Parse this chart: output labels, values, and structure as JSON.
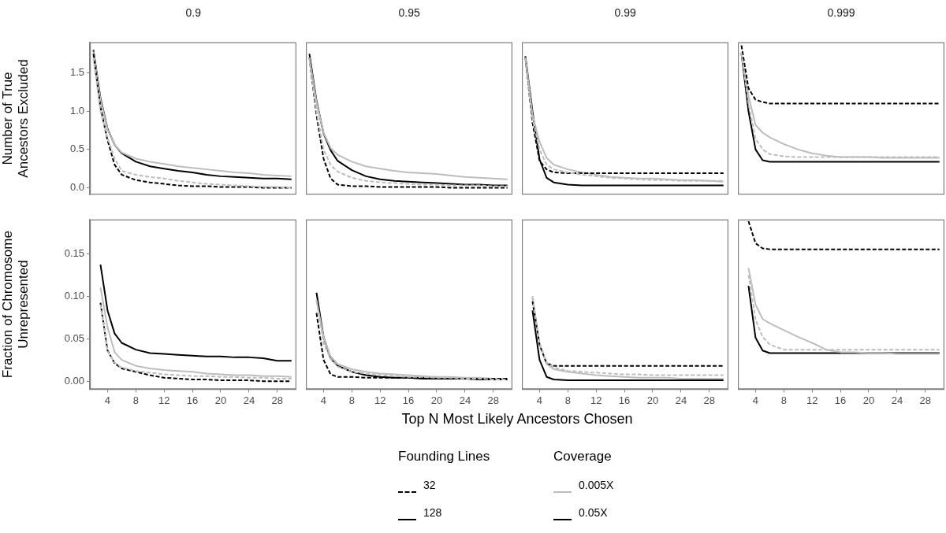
{
  "chart_data": [
    {
      "type": "line",
      "title": "0.9",
      "ylabel": "Number of True Ancestors Excluded",
      "x": [
        2,
        3,
        4,
        5,
        6,
        8,
        10,
        12,
        14,
        16,
        18,
        20,
        22,
        24,
        26,
        28,
        30
      ],
      "xlim": [
        1.5,
        30.7
      ],
      "ylim": [
        -0.09,
        1.9
      ],
      "yticks": [
        {
          "value": 0,
          "label": "0.0"
        },
        0.5,
        {
          "value": 1,
          "label": "1.0"
        },
        1.5
      ],
      "tick_labels": "y",
      "series": [
        {
          "color": "#bdbdbd",
          "line_style": "dashed",
          "values": [
            1.7,
            1.0,
            0.65,
            0.38,
            0.22,
            0.17,
            0.14,
            0.12,
            0.09,
            0.07,
            0.05,
            0.04,
            0.03,
            0.02,
            0.01,
            0.01,
            0.0
          ]
        },
        {
          "color": "#000000",
          "line_style": "dashed",
          "values": [
            1.75,
            1.05,
            0.62,
            0.3,
            0.17,
            0.1,
            0.07,
            0.05,
            0.03,
            0.02,
            0.02,
            0.01,
            0.01,
            0.01,
            0.0,
            0.0,
            0.0
          ]
        },
        {
          "color": "#bdbdbd",
          "line_style": "solid",
          "values": [
            1.78,
            1.15,
            0.76,
            0.56,
            0.46,
            0.38,
            0.34,
            0.31,
            0.28,
            0.26,
            0.24,
            0.22,
            0.2,
            0.19,
            0.17,
            0.16,
            0.15
          ]
        },
        {
          "color": "#000000",
          "line_style": "solid",
          "values": [
            1.8,
            1.17,
            0.77,
            0.56,
            0.45,
            0.34,
            0.28,
            0.25,
            0.22,
            0.2,
            0.17,
            0.15,
            0.14,
            0.13,
            0.12,
            0.12,
            0.11
          ]
        }
      ]
    },
    {
      "type": "line",
      "title": "0.95",
      "x": [
        2,
        3,
        4,
        5,
        6,
        8,
        10,
        12,
        14,
        16,
        18,
        20,
        22,
        24,
        26,
        28,
        30
      ],
      "xlim": [
        1.5,
        30.7
      ],
      "ylim": [
        -0.09,
        1.9
      ],
      "tick_labels": false,
      "series": [
        {
          "color": "#bdbdbd",
          "line_style": "dashed",
          "values": [
            1.7,
            1.0,
            0.5,
            0.3,
            0.21,
            0.13,
            0.09,
            0.07,
            0.06,
            0.05,
            0.04,
            0.04,
            0.03,
            0.03,
            0.03,
            0.02,
            0.02
          ]
        },
        {
          "color": "#000000",
          "line_style": "dashed",
          "values": [
            1.7,
            0.95,
            0.38,
            0.12,
            0.04,
            0.02,
            0.02,
            0.01,
            0.01,
            0.01,
            0.01,
            0.01,
            0.0,
            0.0,
            0.0,
            0.0,
            0.0
          ]
        },
        {
          "color": "#bdbdbd",
          "line_style": "solid",
          "values": [
            1.7,
            1.12,
            0.72,
            0.52,
            0.43,
            0.34,
            0.28,
            0.25,
            0.22,
            0.2,
            0.19,
            0.18,
            0.16,
            0.14,
            0.13,
            0.12,
            0.11
          ]
        },
        {
          "color": "#000000",
          "line_style": "solid",
          "values": [
            1.75,
            1.14,
            0.71,
            0.49,
            0.35,
            0.23,
            0.15,
            0.11,
            0.09,
            0.08,
            0.07,
            0.06,
            0.05,
            0.04,
            0.04,
            0.03,
            0.03
          ]
        }
      ]
    },
    {
      "type": "line",
      "title": "0.99",
      "x": [
        2,
        3,
        4,
        5,
        6,
        8,
        10,
        12,
        14,
        16,
        18,
        20,
        22,
        24,
        26,
        28,
        30
      ],
      "xlim": [
        1.5,
        30.7
      ],
      "ylim": [
        -0.09,
        1.9
      ],
      "tick_labels": false,
      "series": [
        {
          "color": "#bdbdbd",
          "line_style": "dashed",
          "values": [
            1.7,
            0.9,
            0.5,
            0.3,
            0.24,
            0.2,
            0.17,
            0.15,
            0.13,
            0.12,
            0.11,
            0.1,
            0.1,
            0.09,
            0.09,
            0.09,
            0.09
          ]
        },
        {
          "color": "#000000",
          "line_style": "dashed",
          "values": [
            1.7,
            0.85,
            0.35,
            0.24,
            0.2,
            0.19,
            0.19,
            0.19,
            0.19,
            0.19,
            0.19,
            0.19,
            0.19,
            0.19,
            0.19,
            0.19,
            0.19
          ]
        },
        {
          "color": "#bdbdbd",
          "line_style": "solid",
          "values": [
            1.7,
            0.95,
            0.6,
            0.39,
            0.3,
            0.24,
            0.2,
            0.17,
            0.14,
            0.13,
            0.12,
            0.12,
            0.11,
            0.1,
            0.1,
            0.09,
            0.08
          ]
        },
        {
          "color": "#000000",
          "line_style": "solid",
          "values": [
            1.72,
            1.0,
            0.37,
            0.13,
            0.07,
            0.04,
            0.03,
            0.03,
            0.03,
            0.03,
            0.03,
            0.03,
            0.03,
            0.03,
            0.03,
            0.03,
            0.03
          ]
        }
      ]
    },
    {
      "type": "line",
      "title": "0.999",
      "x": [
        2,
        3,
        4,
        5,
        6,
        8,
        10,
        12,
        14,
        16,
        18,
        20,
        22,
        24,
        26,
        28,
        30
      ],
      "xlim": [
        1.5,
        30.7
      ],
      "ylim": [
        -0.09,
        1.9
      ],
      "tick_labels": false,
      "series": [
        {
          "color": "#bdbdbd",
          "line_style": "dashed",
          "values": [
            1.76,
            1.1,
            0.64,
            0.5,
            0.44,
            0.41,
            0.4,
            0.4,
            0.4,
            0.4,
            0.4,
            0.4,
            0.4,
            0.4,
            0.4,
            0.4,
            0.4
          ]
        },
        {
          "color": "#000000",
          "line_style": "dashed",
          "values": [
            1.86,
            1.3,
            1.15,
            1.12,
            1.1,
            1.1,
            1.1,
            1.1,
            1.1,
            1.1,
            1.1,
            1.1,
            1.1,
            1.1,
            1.1,
            1.1,
            1.1
          ]
        },
        {
          "color": "#bdbdbd",
          "line_style": "solid",
          "values": [
            1.76,
            1.2,
            0.82,
            0.72,
            0.66,
            0.57,
            0.5,
            0.45,
            0.42,
            0.4,
            0.4,
            0.4,
            0.39,
            0.39,
            0.39,
            0.39,
            0.39
          ]
        },
        {
          "color": "#000000",
          "line_style": "solid",
          "values": [
            1.76,
            1.0,
            0.5,
            0.36,
            0.34,
            0.34,
            0.34,
            0.34,
            0.34,
            0.34,
            0.34,
            0.34,
            0.34,
            0.34,
            0.34,
            0.34,
            0.34
          ]
        }
      ]
    },
    {
      "type": "line",
      "ylabel": "Fraction of Chromosome Unrepresented",
      "x": [
        3,
        4,
        5,
        6,
        8,
        10,
        12,
        14,
        16,
        18,
        20,
        22,
        24,
        26,
        28,
        30
      ],
      "xlim": [
        1.5,
        30.7
      ],
      "ylim": [
        -0.0095,
        0.19
      ],
      "xticks": [
        4,
        8,
        12,
        16,
        20,
        24,
        28
      ],
      "yticks": [
        {
          "value": 0,
          "label": "0.00"
        },
        0.05,
        {
          "value": 0.1,
          "label": "0.10"
        },
        0.15
      ],
      "series": [
        {
          "color": "#bdbdbd",
          "line_style": "dashed",
          "values": [
            0.09,
            0.035,
            0.022,
            0.016,
            0.012,
            0.01,
            0.008,
            0.007,
            0.006,
            0.006,
            0.005,
            0.005,
            0.004,
            0.004,
            0.003,
            0.003
          ]
        },
        {
          "color": "#000000",
          "line_style": "dashed",
          "values": [
            0.092,
            0.036,
            0.021,
            0.015,
            0.011,
            0.007,
            0.004,
            0.003,
            0.002,
            0.002,
            0.001,
            0.001,
            0.001,
            0.0,
            0.0,
            0.0
          ]
        },
        {
          "color": "#bdbdbd",
          "line_style": "solid",
          "values": [
            0.11,
            0.063,
            0.034,
            0.025,
            0.018,
            0.015,
            0.013,
            0.012,
            0.011,
            0.009,
            0.008,
            0.007,
            0.007,
            0.006,
            0.006,
            0.005
          ]
        },
        {
          "color": "#000000",
          "line_style": "solid",
          "values": [
            0.137,
            0.083,
            0.056,
            0.045,
            0.037,
            0.033,
            0.032,
            0.031,
            0.03,
            0.029,
            0.029,
            0.028,
            0.028,
            0.027,
            0.024,
            0.024
          ]
        }
      ]
    },
    {
      "type": "line",
      "xlabel": "Top N Most Likely Ancestors Chosen",
      "x": [
        3,
        4,
        5,
        6,
        8,
        10,
        12,
        14,
        16,
        18,
        20,
        22,
        24,
        26,
        28,
        30
      ],
      "xlim": [
        1.5,
        30.7
      ],
      "ylim": [
        -0.0095,
        0.19
      ],
      "xticks": [
        4,
        8,
        12,
        16,
        20,
        24,
        28
      ],
      "tick_labels": "x",
      "series": [
        {
          "color": "#bdbdbd",
          "line_style": "dashed",
          "values": [
            0.095,
            0.045,
            0.026,
            0.017,
            0.011,
            0.009,
            0.007,
            0.006,
            0.005,
            0.005,
            0.004,
            0.004,
            0.003,
            0.003,
            0.002,
            0.002
          ]
        },
        {
          "color": "#000000",
          "line_style": "dashed",
          "values": [
            0.08,
            0.025,
            0.008,
            0.005,
            0.005,
            0.004,
            0.004,
            0.004,
            0.004,
            0.004,
            0.003,
            0.003,
            0.003,
            0.003,
            0.003,
            0.003
          ]
        },
        {
          "color": "#bdbdbd",
          "line_style": "solid",
          "values": [
            0.095,
            0.052,
            0.029,
            0.02,
            0.014,
            0.011,
            0.009,
            0.008,
            0.007,
            0.006,
            0.005,
            0.005,
            0.004,
            0.004,
            0.003,
            0.003
          ]
        },
        {
          "color": "#000000",
          "line_style": "solid",
          "values": [
            0.104,
            0.052,
            0.027,
            0.018,
            0.011,
            0.007,
            0.005,
            0.004,
            0.004,
            0.003,
            0.003,
            0.003,
            0.003,
            0.002,
            0.002,
            0.002
          ]
        }
      ]
    },
    {
      "type": "line",
      "x": [
        3,
        4,
        5,
        6,
        8,
        10,
        12,
        14,
        16,
        18,
        20,
        22,
        24,
        26,
        28,
        30
      ],
      "xlim": [
        1.5,
        30.7
      ],
      "ylim": [
        -0.0095,
        0.19
      ],
      "xticks": [
        4,
        8,
        12,
        16,
        20,
        24,
        28
      ],
      "tick_labels": "x",
      "series": [
        {
          "color": "#bdbdbd",
          "line_style": "dashed",
          "values": [
            0.098,
            0.045,
            0.022,
            0.016,
            0.012,
            0.011,
            0.01,
            0.009,
            0.008,
            0.008,
            0.007,
            0.007,
            0.007,
            0.007,
            0.007,
            0.007
          ]
        },
        {
          "color": "#000000",
          "line_style": "dashed",
          "values": [
            0.094,
            0.043,
            0.021,
            0.018,
            0.018,
            0.018,
            0.018,
            0.018,
            0.018,
            0.018,
            0.018,
            0.018,
            0.018,
            0.018,
            0.018,
            0.018
          ]
        },
        {
          "color": "#bdbdbd",
          "line_style": "solid",
          "values": [
            0.1,
            0.043,
            0.02,
            0.014,
            0.011,
            0.009,
            0.007,
            0.006,
            0.005,
            0.004,
            0.004,
            0.004,
            0.003,
            0.003,
            0.003,
            0.003
          ]
        },
        {
          "color": "#000000",
          "line_style": "solid",
          "values": [
            0.083,
            0.025,
            0.005,
            0.002,
            0.001,
            0.001,
            0.001,
            0.001,
            0.001,
            0.001,
            0.001,
            0.001,
            0.001,
            0.001,
            0.001,
            0.001
          ]
        }
      ]
    },
    {
      "type": "line",
      "x": [
        3,
        4,
        5,
        6,
        8,
        10,
        12,
        14,
        16,
        18,
        20,
        22,
        24,
        26,
        28,
        30
      ],
      "xlim": [
        1.5,
        30.7
      ],
      "ylim": [
        -0.0095,
        0.19
      ],
      "xticks": [
        4,
        8,
        12,
        16,
        20,
        24,
        28
      ],
      "tick_labels": "x",
      "series": [
        {
          "color": "#bdbdbd",
          "line_style": "dashed",
          "values": [
            0.125,
            0.072,
            0.052,
            0.043,
            0.037,
            0.037,
            0.037,
            0.037,
            0.037,
            0.037,
            0.037,
            0.037,
            0.037,
            0.037,
            0.037,
            0.037
          ]
        },
        {
          "color": "#000000",
          "line_style": "dashed",
          "values": [
            0.188,
            0.162,
            0.156,
            0.155,
            0.155,
            0.155,
            0.155,
            0.155,
            0.155,
            0.155,
            0.155,
            0.155,
            0.155,
            0.155,
            0.155,
            0.155
          ]
        },
        {
          "color": "#bdbdbd",
          "line_style": "solid",
          "values": [
            0.133,
            0.09,
            0.073,
            0.068,
            0.06,
            0.052,
            0.045,
            0.037,
            0.034,
            0.034,
            0.033,
            0.033,
            0.032,
            0.032,
            0.032,
            0.032
          ]
        },
        {
          "color": "#000000",
          "line_style": "solid",
          "values": [
            0.112,
            0.051,
            0.036,
            0.033,
            0.033,
            0.033,
            0.033,
            0.033,
            0.033,
            0.033,
            0.033,
            0.033,
            0.033,
            0.033,
            0.033,
            0.033
          ]
        }
      ]
    },
    {
      "type": "other",
      "annotations": [
        "Founding Lines",
        "32",
        "128",
        "Coverage",
        "0.005X",
        "0.05X"
      ]
    }
  ]
}
